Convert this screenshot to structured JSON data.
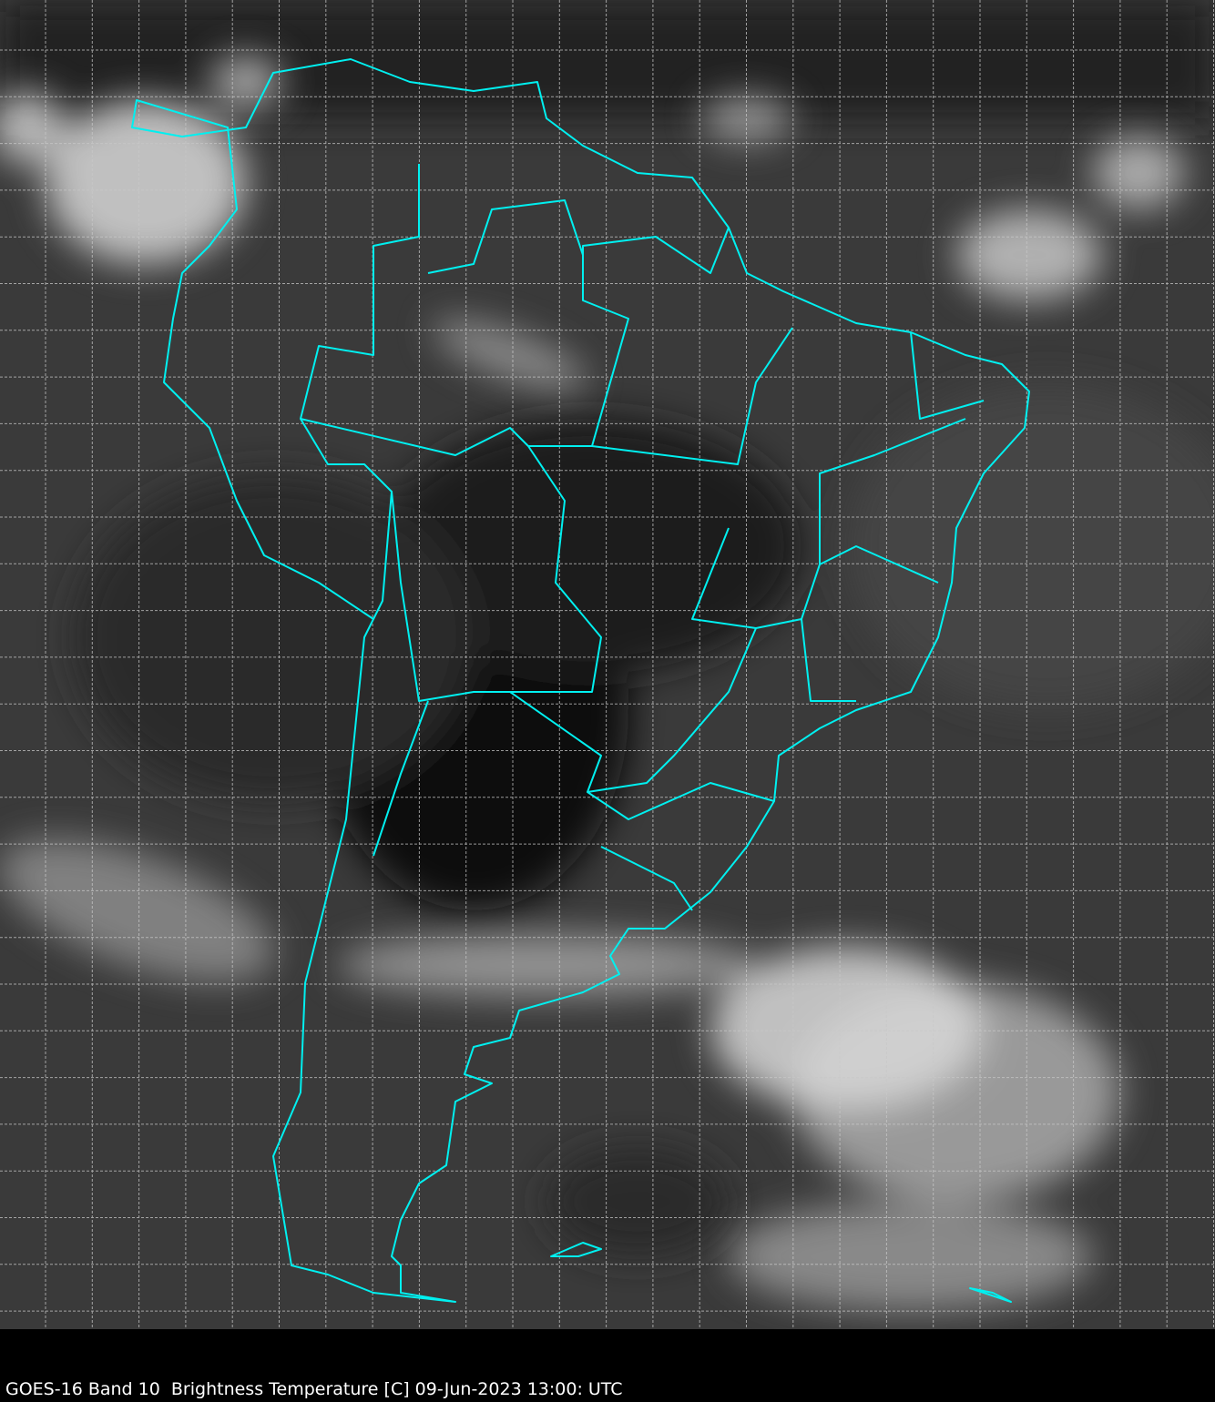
{
  "caption": "GOES-16 Band 10  Brightness Temperature [C] 09-Jun-2023 13:00: UTC",
  "colors": {
    "background": "#3a3a3a",
    "borders": "#00f0f0",
    "grid": "#c8c8c8",
    "cloud": "#e0e0e0",
    "caption_bar": "#000000",
    "caption_text": "#ffffff"
  },
  "map": {
    "region": "South America",
    "product": "water vapor brightness temperature, greyscale",
    "gridlines": "dashed"
  }
}
